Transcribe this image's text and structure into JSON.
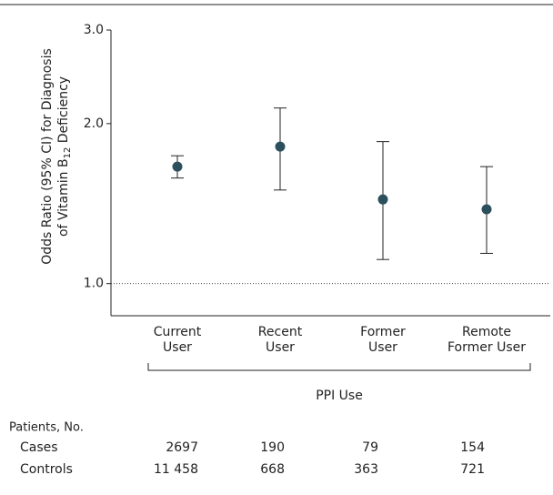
{
  "chart_data": {
    "type": "errorpoint",
    "y_label": {
      "line1": "Odds Ratio (95% CI) for Diagnosis",
      "line2_before": "of Vitamin B",
      "line2_sub": "12",
      "line2_after": " Deficiency"
    },
    "categories": [
      [
        "Current",
        "User"
      ],
      [
        "Recent",
        "User"
      ],
      [
        "Former",
        "User"
      ],
      [
        "Remote",
        "Former User"
      ]
    ],
    "values": [
      1.66,
      1.81,
      1.44,
      1.38
    ],
    "lower": [
      1.58,
      1.5,
      1.11,
      1.14
    ],
    "upper": [
      1.74,
      2.14,
      1.85,
      1.66
    ],
    "color": "#2b4f5c",
    "log_y": true,
    "ylim": [
      0.87,
      3.0
    ],
    "yticks": [
      {
        "value": 1,
        "label": "1.0"
      },
      {
        "value": 2,
        "label": "2.0"
      },
      {
        "value": 3,
        "label": "3.0"
      }
    ],
    "reference_line": 1,
    "x_label": "PPI Use",
    "table": {
      "title": "Patients, No.",
      "rows": [
        {
          "label": "Cases",
          "values": [
            2697,
            190,
            79,
            154
          ]
        },
        {
          "label": "Controls",
          "values": [
            11458,
            668,
            363,
            721
          ],
          "value_labels": [
            "11 458",
            "668",
            "363",
            "721"
          ]
        }
      ]
    }
  }
}
